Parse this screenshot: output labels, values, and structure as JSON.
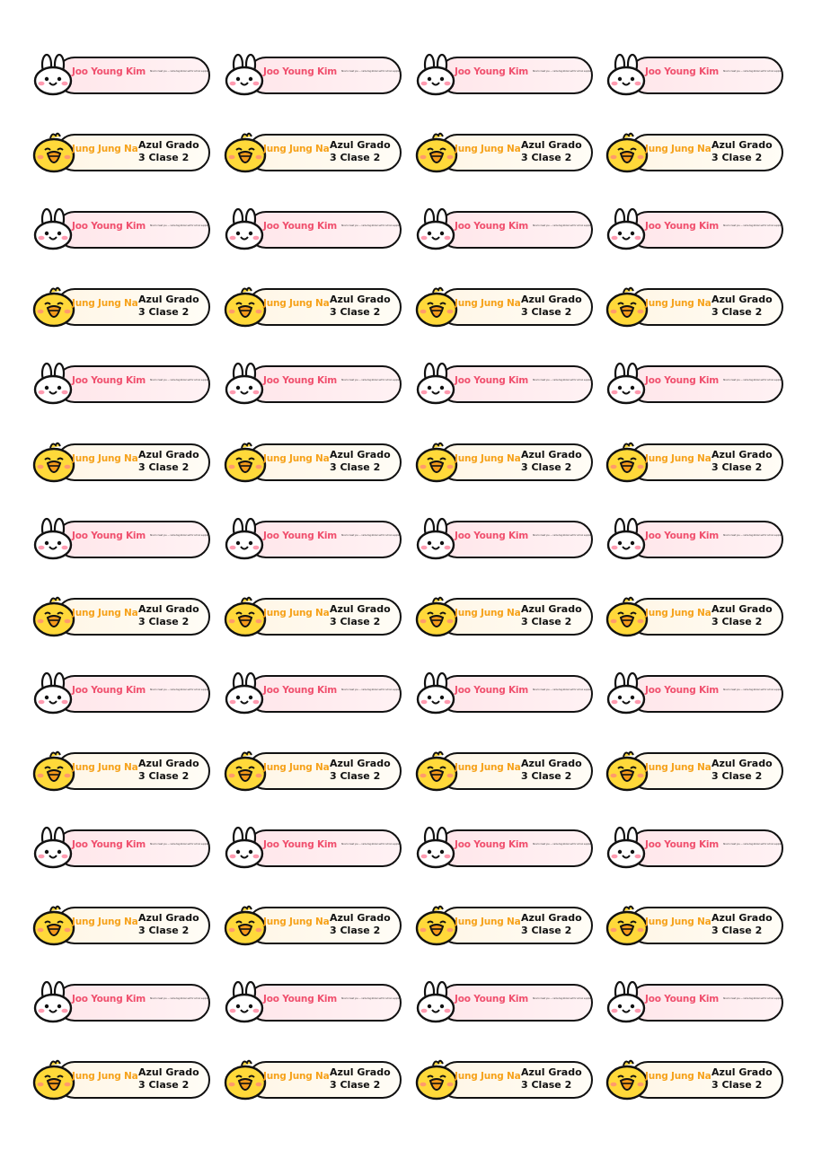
{
  "sheet": {
    "columns": 4,
    "rows": 14,
    "row_pattern": [
      "rabbit",
      "chick"
    ]
  },
  "labels": {
    "rabbit": {
      "mascot_icon": "rabbit-face-icon",
      "name": "Joo Young Kim",
      "note": "Nice to meet you — name tag sticker set for school supplies",
      "accent": "#f0506e",
      "background": "#ffe6ea"
    },
    "chick": {
      "mascot_icon": "chick-face-icon",
      "name": "Jung Jung Na",
      "group_line1": "Azul Grado",
      "group_line2": "3 Clase 2",
      "accent": "#f6a21a",
      "background": "#fff6e6"
    }
  },
  "colors": {
    "outline": "#111111",
    "rabbit_cheek": "#ff9bb0",
    "chick_body": "#ffd93a",
    "chick_beak": "#f59a1b"
  }
}
